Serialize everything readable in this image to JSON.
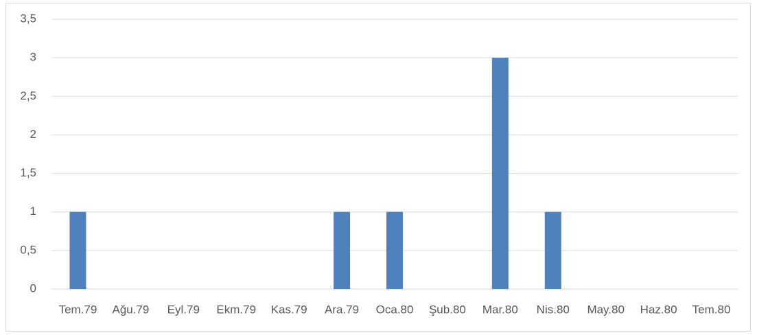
{
  "chart_data": {
    "type": "bar",
    "categories": [
      "Tem.79",
      "Ağu.79",
      "Eyl.79",
      "Ekm.79",
      "Kas.79",
      "Ara.79",
      "Oca.80",
      "Şub.80",
      "Mar.80",
      "Nis.80",
      "May.80",
      "Haz.80",
      "Tem.80"
    ],
    "values": [
      1,
      0,
      0,
      0,
      0,
      1,
      1,
      0,
      3,
      1,
      0,
      0,
      0
    ],
    "color": "#4f81bd",
    "ylim": [
      0,
      3.5
    ],
    "yticks": [
      0,
      {
        "value": 0.5,
        "label": "0,5"
      },
      1,
      {
        "value": 1.5,
        "label": "1,5"
      },
      2,
      {
        "value": 2.5,
        "label": "2,5"
      },
      3,
      {
        "value": 3.5,
        "label": "3,5"
      }
    ],
    "grid": true
  }
}
